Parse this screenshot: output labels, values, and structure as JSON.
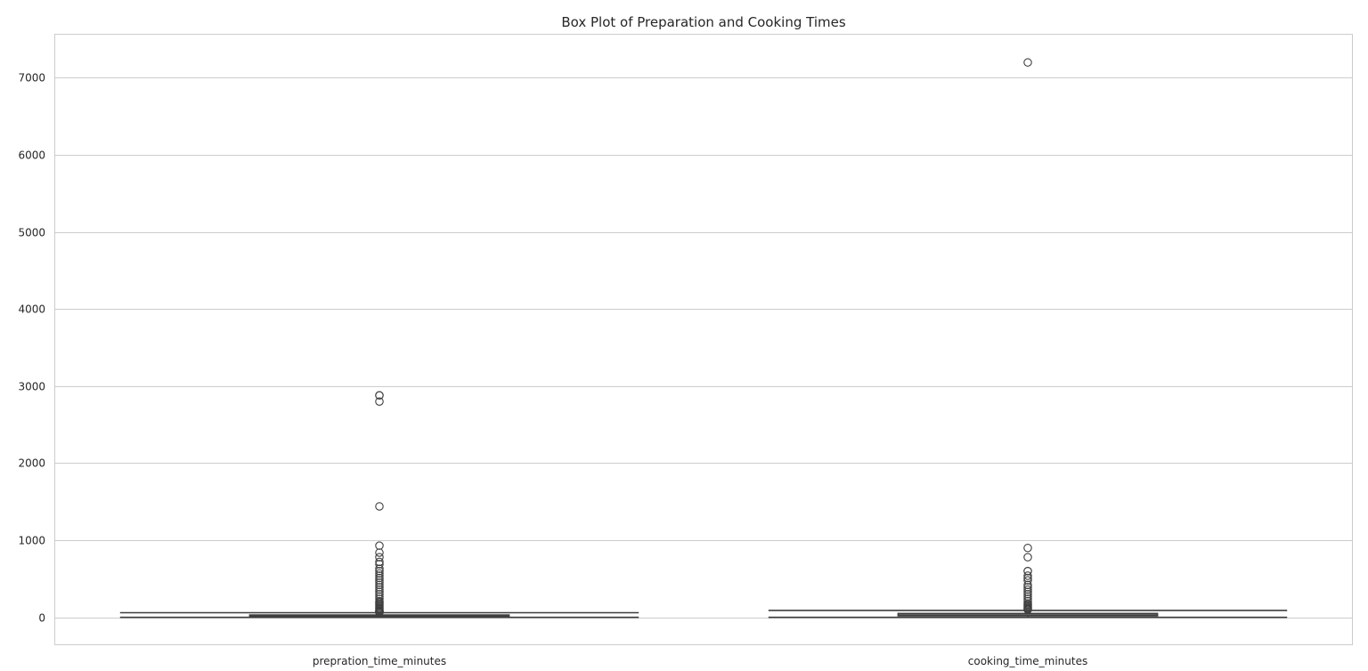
{
  "chart_data": {
    "type": "box",
    "title": "Box Plot of Preparation and Cooking Times",
    "xlabel": "",
    "ylabel": "",
    "ylim": [
      -350,
      7560
    ],
    "yticks": [
      0,
      1000,
      2000,
      3000,
      4000,
      5000,
      6000,
      7000
    ],
    "grid": true,
    "legend": "none",
    "box_color": "#3f3f3f",
    "categories": [
      "prepration_time_minutes",
      "cooking_time_minutes"
    ],
    "boxes": [
      {
        "name": "prepration_time_minutes",
        "whisker_low": 0,
        "q1": 10,
        "median": 20,
        "q3": 30,
        "whisker_high": 60,
        "outliers": [
          2880,
          2880,
          2800,
          1440,
          930,
          840,
          780,
          720,
          690,
          630,
          600,
          570,
          540,
          510,
          480,
          450,
          420,
          390,
          360,
          330,
          300,
          270,
          240,
          210,
          195,
          180,
          165,
          150,
          135,
          120,
          105,
          90,
          80,
          75,
          70,
          65
        ]
      },
      {
        "name": "cooking_time_minutes",
        "whisker_low": 0,
        "q1": 20,
        "median": 30,
        "q3": 50,
        "whisker_high": 90,
        "outliers": [
          7200,
          900,
          780,
          600,
          600,
          540,
          510,
          480,
          420,
          390,
          360,
          330,
          300,
          270,
          240,
          210,
          180,
          165,
          150,
          135,
          120,
          110,
          100
        ]
      }
    ]
  }
}
